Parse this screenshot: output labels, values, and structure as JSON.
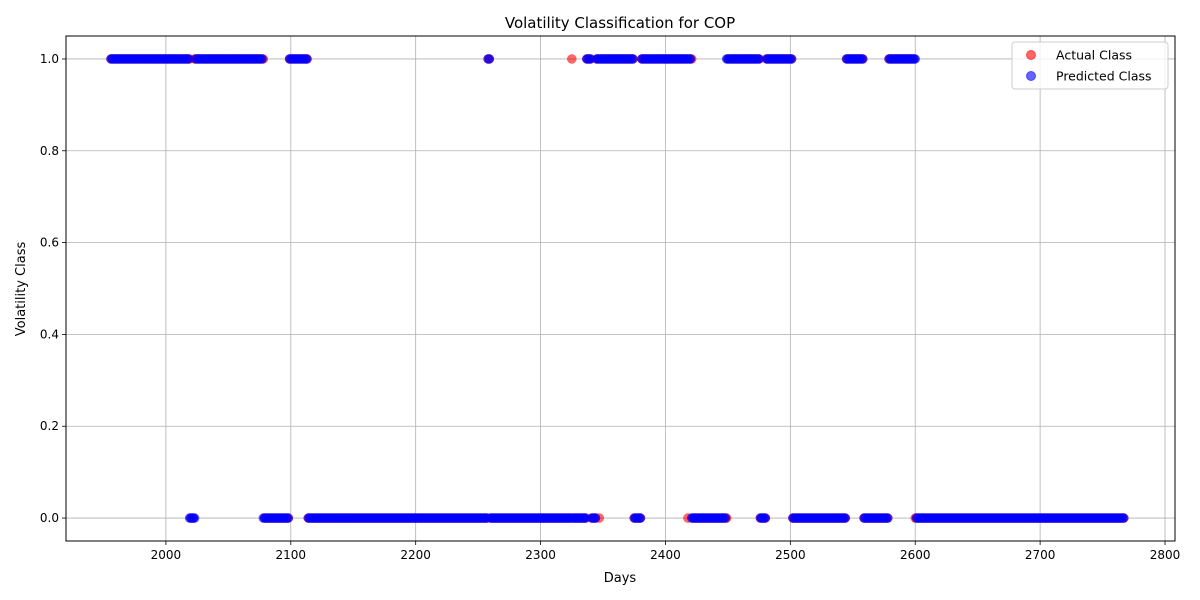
{
  "chart_data": {
    "type": "scatter",
    "title": "Volatility Classification for COP",
    "xlabel": "Days",
    "ylabel": "Volatility Class",
    "xlim": [
      1920,
      2808
    ],
    "ylim": [
      -0.05,
      1.05
    ],
    "x_ticks": [
      2000,
      2100,
      2200,
      2300,
      2400,
      2500,
      2600,
      2700,
      2800
    ],
    "x_tick_labels": [
      "2000",
      "2100",
      "2200",
      "2300",
      "2400",
      "2500",
      "2600",
      "2700",
      "2800"
    ],
    "y_ticks": [
      0.0,
      0.2,
      0.4,
      0.6,
      0.8,
      1.0
    ],
    "y_tick_labels": [
      "0.0",
      "0.2",
      "0.4",
      "0.6",
      "0.8",
      "1.0"
    ],
    "grid": true,
    "legend_position": "top-right",
    "x_start": 1956,
    "x_end": 2767,
    "segments": [
      {
        "start": 1956,
        "end": 2018,
        "value": 1
      },
      {
        "start": 2019,
        "end": 2023,
        "value": 0
      },
      {
        "start": 2024,
        "end": 2077,
        "value": 1
      },
      {
        "start": 2078,
        "end": 2098,
        "value": 0
      },
      {
        "start": 2099,
        "end": 2113,
        "value": 1
      },
      {
        "start": 2114,
        "end": 2257,
        "value": 0
      },
      {
        "start": 2258,
        "end": 2259,
        "value": 1
      },
      {
        "start": 2260,
        "end": 2336,
        "value": 0
      },
      {
        "start": 2337,
        "end": 2340,
        "value": 1
      },
      {
        "start": 2341,
        "end": 2344,
        "value": 0
      },
      {
        "start": 2345,
        "end": 2374,
        "value": 1
      },
      {
        "start": 2375,
        "end": 2380,
        "value": 0
      },
      {
        "start": 2381,
        "end": 2421,
        "value": 1
      },
      {
        "start": 2422,
        "end": 2448,
        "value": 0
      },
      {
        "start": 2449,
        "end": 2475,
        "value": 1
      },
      {
        "start": 2476,
        "end": 2480,
        "value": 0
      },
      {
        "start": 2481,
        "end": 2501,
        "value": 1
      },
      {
        "start": 2502,
        "end": 2544,
        "value": 0
      },
      {
        "start": 2545,
        "end": 2558,
        "value": 1
      },
      {
        "start": 2559,
        "end": 2578,
        "value": 0
      },
      {
        "start": 2579,
        "end": 2599,
        "value": 1
      },
      {
        "start": 2600,
        "end": 2767,
        "value": 0
      }
    ],
    "mismatches": [
      {
        "x": 2019,
        "actual": 1,
        "predicted": 0
      },
      {
        "x": 2023,
        "actual": 1,
        "predicted": 0
      },
      {
        "x": 2078,
        "actual": 1,
        "predicted": 0
      },
      {
        "x": 2325,
        "actual": 1,
        "predicted": 0
      },
      {
        "x": 2347,
        "actual": 0,
        "predicted": 1
      },
      {
        "x": 2418,
        "actual": 0,
        "predicted": 1
      },
      {
        "x": 2421,
        "actual": 1,
        "predicted": 0
      },
      {
        "x": 2449,
        "actual": 0,
        "predicted": 1
      },
      {
        "x": 2600,
        "actual": 0,
        "predicted": 1
      }
    ],
    "series": [
      {
        "name": "Actual Class",
        "color": "#ff0000",
        "alpha": 0.6
      },
      {
        "name": "Predicted Class",
        "color": "#0000ff",
        "alpha": 0.6
      }
    ]
  }
}
